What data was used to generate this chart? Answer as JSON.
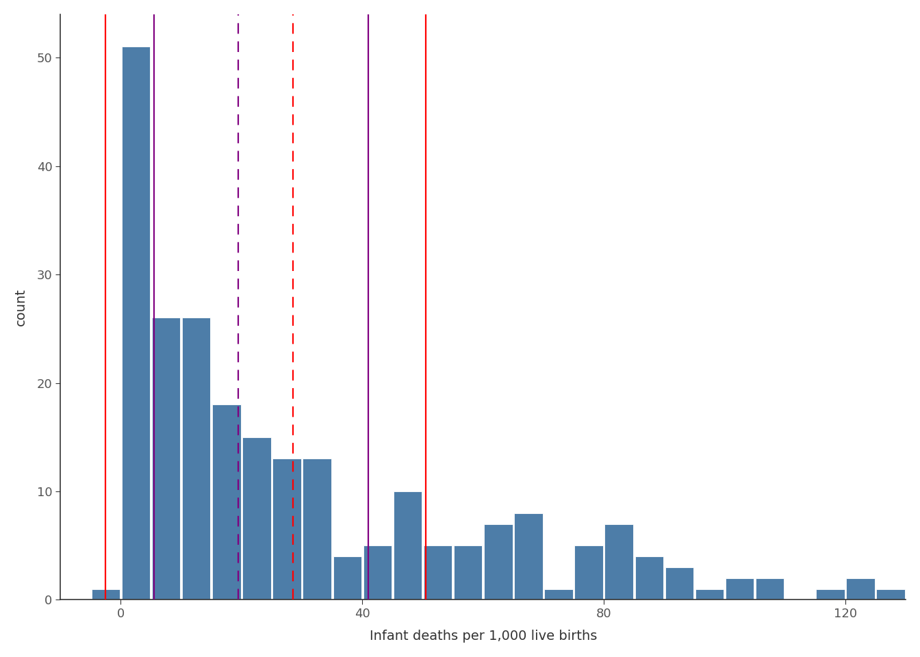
{
  "xlabel": "Infant deaths per 1,000 live births",
  "ylabel": "count",
  "bar_color": "#4d7da8",
  "bar_edgecolor": "white",
  "xlim": [
    -10,
    130
  ],
  "ylim": [
    0,
    54
  ],
  "yticks": [
    0,
    10,
    20,
    30,
    40,
    50
  ],
  "xticks": [
    0,
    40,
    80,
    120
  ],
  "bin_edges": [
    -5,
    0,
    5,
    10,
    15,
    20,
    25,
    30,
    35,
    40,
    45,
    50,
    55,
    60,
    65,
    70,
    75,
    80,
    85,
    90,
    95,
    100,
    105,
    110,
    115,
    120,
    125,
    130
  ],
  "bar_heights": [
    1,
    51,
    26,
    26,
    18,
    15,
    13,
    13,
    4,
    5,
    10,
    5,
    5,
    7,
    8,
    1,
    5,
    7,
    4,
    3,
    1,
    2,
    2,
    0,
    1,
    2,
    1
  ],
  "vlines_solid_red": [
    -2.5,
    50.5
  ],
  "vlines_solid_purple": [
    5.5,
    41.0
  ],
  "vlines_dashed_purple": [
    19.5
  ],
  "vlines_dashed_red": [
    28.5
  ],
  "line_linewidth": 1.6,
  "background_color": "#ffffff",
  "spine_color": "#333333",
  "tick_labelsize": 13,
  "axis_labelsize": 14
}
